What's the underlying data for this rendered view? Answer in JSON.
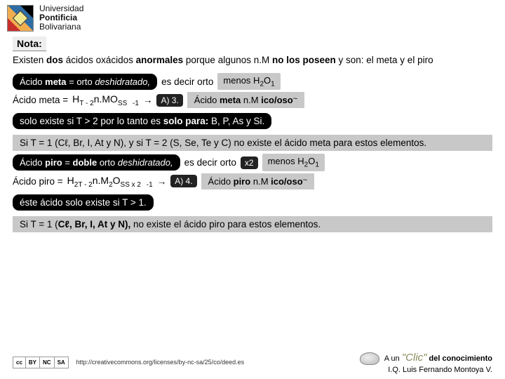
{
  "header": {
    "uni_line1": "Universidad",
    "uni_line2": "Pontificia",
    "uni_line3": "Bolivariana"
  },
  "nota": {
    "label": "Nota:",
    "text_prefix": "Existen ",
    "text_bold1": "dos",
    "text_mid1": " ácidos oxácidos ",
    "text_bold2": "anormales",
    "text_mid2": " porque algunos n.M ",
    "text_bold3": "no los poseen",
    "text_mid3": " y son: el meta y el piro"
  },
  "meta": {
    "def_pre": "Ácido ",
    "def_bold": "meta",
    "def_mid": " = orto ",
    "def_it": "deshidratado,",
    "plain1": "es decir orto",
    "plain2_pre": "menos H",
    "plain2_sub1": "2",
    "plain2_mid": "O",
    "plain2_sub2": "1",
    "line2_label": "Ácido meta = ",
    "line2_formula": "H",
    "line2_T": "T - 2",
    "line2_nmo": "n.MO",
    "line2_ss": "SS",
    "line2_minus": "-1",
    "arrow": "→",
    "aref": "A) 3.",
    "result_pre": "Ácido ",
    "result_bold1": "meta",
    "result_mid": "  n.M",
    "result_bold2": " ico/oso"
  },
  "existe1": "solo existe si T > 2 por lo tanto es solo para: B, P, As y Si.",
  "existe1_solo": "solo para:",
  "gray1": "Si T = 1 (Cℓ, Br, I, At y N), y si T = 2 (S, Se, Te y C) no existe el ácido meta para estos elementos.",
  "piro": {
    "def_pre": "Ácido ",
    "def_bold": "piro",
    "def_mid1": " = ",
    "def_bold2": "doble",
    "def_mid2": " orto ",
    "def_it": "deshidratado,",
    "plain1": "es decir orto",
    "x2": "x2",
    "plain2_pre": "menos H",
    "plain2_sub1": "2",
    "plain2_mid": "O",
    "plain2_sub2": "1",
    "line2_label": "Ácido piro = ",
    "formula_h": "H",
    "formula_2t2": "2T - 2",
    "formula_nm": "n.M",
    "formula_2": "2",
    "formula_o": "O",
    "formula_ssx2": "SS x 2",
    "formula_minus": "-1",
    "arrow": "→",
    "aref": "A) 4.",
    "result_pre": "Ácido ",
    "result_bold1": "piro",
    "result_mid": "  n.M",
    "result_bold2": " ico/oso"
  },
  "existe2": "éste ácido solo existe si T > 1.",
  "gray2_pre": "Si T = 1 (",
  "gray2_bold": "Cℓ, Br, I, At y N),",
  "gray2_mid": " no existe el ácido piro para estos elementos.",
  "footer": {
    "cc_by": "BY",
    "cc_nc": "NC",
    "cc_sa": "SA",
    "url": "http://creativecommons.org/licenses/by-nc-sa/25/co/deed.es",
    "tagline_pre": "A un ",
    "tagline_clic": "\"Clic\"",
    "tagline_post": " del conocimiento",
    "author": "I.Q. Luis Fernando Montoya V."
  },
  "colors": {
    "black": "#000000",
    "gray": "#c8c8c8",
    "bg": "#ffffff",
    "clic": "#8a8a5c"
  }
}
